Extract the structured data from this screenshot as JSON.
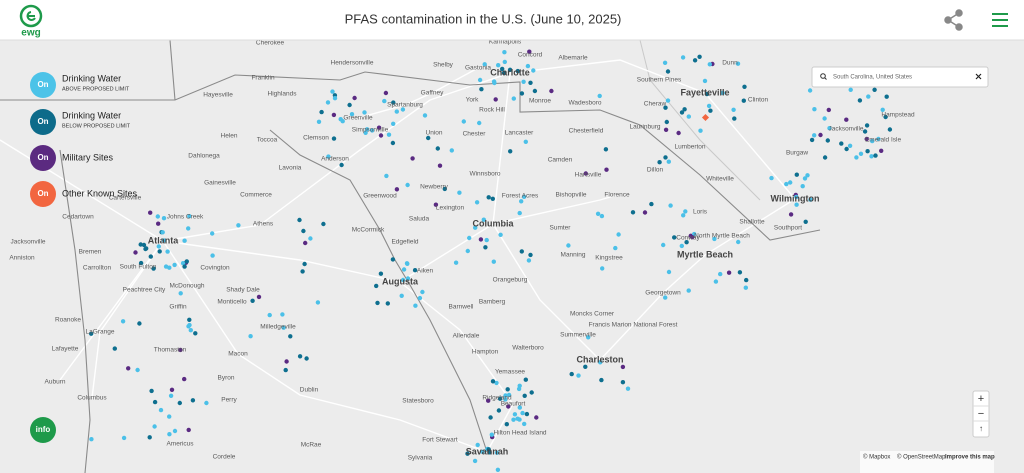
{
  "header": {
    "logo": "ewg",
    "title": "PFAS contamination in the U.S. (June 10, 2025)"
  },
  "legend": [
    {
      "button": "On",
      "label": "Drinking Water",
      "sublabel": "ABOVE PROPOSED LIMIT"
    },
    {
      "button": "On",
      "label": "Drinking Water",
      "sublabel": "BELOW PROPOSED LIMIT"
    },
    {
      "button": "On",
      "label": "Military Sites"
    },
    {
      "button": "On",
      "label": "Other Known Sites"
    }
  ],
  "search": {
    "query": "South Carolina, United States"
  },
  "map": {
    "major_places": [
      "Charlotte",
      "Atlanta",
      "Columbia",
      "Augusta",
      "Savannah",
      "Charleston",
      "Wilmington",
      "Myrtle Beach",
      "Fayetteville"
    ],
    "places": [
      "Gastonia",
      "Kannapolis",
      "Albemarle",
      "Concord",
      "Dunn",
      "Southern Pines",
      "Clinton",
      "Lumberton",
      "Laurinburg",
      "Jacksonville",
      "Emerald Isle",
      "Burgaw",
      "Whiteville",
      "Shallotte",
      "Southport",
      "North Myrtle Beach",
      "Conway",
      "Florence",
      "Dillon",
      "Hartsville",
      "Bishopville",
      "Chesterfield",
      "Lancaster",
      "Rock Hill",
      "York",
      "Monroe",
      "Wadesboro",
      "Gaffney",
      "Shelby",
      "Spartanburg",
      "Greenville",
      "Simpsonville",
      "Anderson",
      "Clemson",
      "Greenwood",
      "Union",
      "Chester",
      "Winnsboro",
      "Newberry",
      "Sumter",
      "Orangeburg",
      "Aiken",
      "Edgefield",
      "Saluda",
      "McCormick",
      "Barnwell",
      "Bamberg",
      "Walterboro",
      "Hampton",
      "Allendale",
      "Beaufort",
      "Hilton Head Island",
      "Ridgeland",
      "Statesboro",
      "Summerville",
      "Moncks Corner",
      "Georgetown",
      "Kingstree",
      "Manning",
      "Francis Marion National Forest",
      "Yemassee",
      "Johns Creek",
      "Athens",
      "Gainesville",
      "Commerce",
      "Cartersville",
      "Dahlonega",
      "Toccoa",
      "Lavonia",
      "Covington",
      "McDonough",
      "Griffin",
      "Peachtree City",
      "Carrollton",
      "LaGrange",
      "Macon",
      "Milledgeville",
      "Thomaston",
      "Dublin",
      "Perry",
      "Byron",
      "Columbus",
      "Auburn",
      "Americus",
      "Cordele",
      "McRae",
      "Monticello",
      "Shady Dale",
      "Helen",
      "Hayesville",
      "Franklin",
      "Highlands",
      "Cherokee",
      "Hendersonville",
      "Cedartown",
      "Jacksonville",
      "Anniston",
      "Roanoke",
      "Lafayette",
      "South Fulton",
      "Bremen",
      "Havelock",
      "Hampstead",
      "Lexington",
      "Camden",
      "Cheraw",
      "Loris",
      "Forest Acres",
      "Sylvania",
      "Fort Stewart"
    ]
  },
  "controls": {
    "info": "info",
    "zoom_in": "+",
    "zoom_out": "−",
    "north": "↑"
  },
  "attribution": {
    "mapbox": "© Mapbox",
    "osm": "© OpenStreetMap",
    "improve": "Improve this map"
  }
}
